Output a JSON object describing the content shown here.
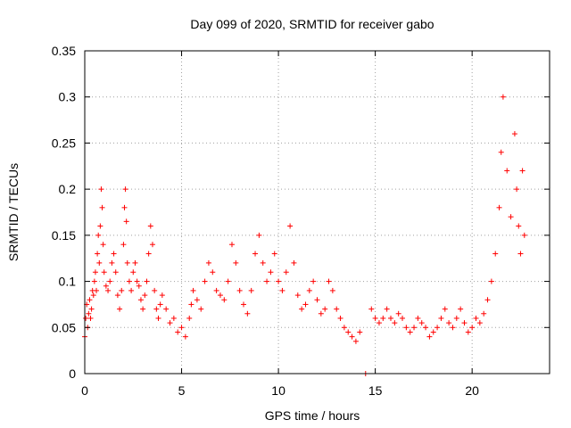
{
  "chart_data": {
    "type": "scatter",
    "title": "Day 099 of 2020, SRMTID for receiver gabo",
    "xlabel": "GPS time / hours",
    "ylabel": "SRMTID / TECUs",
    "xlim": [
      0,
      24
    ],
    "ylim": [
      0,
      0.35
    ],
    "xticks": [
      0,
      5,
      10,
      15,
      20
    ],
    "xtick_labels": [
      "0",
      "5",
      "10",
      "15",
      "20"
    ],
    "yticks": [
      0,
      0.05,
      0.1,
      0.15,
      0.2,
      0.25,
      0.3,
      0.35
    ],
    "ytick_labels": [
      "0",
      "0.05",
      "0.1",
      "0.15",
      "0.2",
      "0.25",
      "0.3",
      "0.35"
    ],
    "grid": true,
    "marker": "+",
    "color": "#ff0000",
    "series": [
      {
        "name": "SRMTID",
        "points": [
          [
            0.0,
            0.04
          ],
          [
            0.05,
            0.06
          ],
          [
            0.1,
            0.075
          ],
          [
            0.15,
            0.05
          ],
          [
            0.2,
            0.065
          ],
          [
            0.25,
            0.08
          ],
          [
            0.3,
            0.06
          ],
          [
            0.35,
            0.07
          ],
          [
            0.4,
            0.09
          ],
          [
            0.45,
            0.085
          ],
          [
            0.5,
            0.1
          ],
          [
            0.55,
            0.11
          ],
          [
            0.6,
            0.09
          ],
          [
            0.65,
            0.13
          ],
          [
            0.7,
            0.15
          ],
          [
            0.75,
            0.12
          ],
          [
            0.8,
            0.16
          ],
          [
            0.85,
            0.2
          ],
          [
            0.9,
            0.18
          ],
          [
            0.95,
            0.14
          ],
          [
            1.0,
            0.11
          ],
          [
            1.1,
            0.095
          ],
          [
            1.2,
            0.09
          ],
          [
            1.3,
            0.1
          ],
          [
            1.4,
            0.12
          ],
          [
            1.5,
            0.13
          ],
          [
            1.6,
            0.11
          ],
          [
            1.7,
            0.085
          ],
          [
            1.8,
            0.07
          ],
          [
            1.9,
            0.09
          ],
          [
            2.0,
            0.14
          ],
          [
            2.05,
            0.18
          ],
          [
            2.1,
            0.2
          ],
          [
            2.15,
            0.165
          ],
          [
            2.2,
            0.12
          ],
          [
            2.3,
            0.1
          ],
          [
            2.4,
            0.09
          ],
          [
            2.5,
            0.11
          ],
          [
            2.6,
            0.12
          ],
          [
            2.7,
            0.1
          ],
          [
            2.8,
            0.095
          ],
          [
            2.9,
            0.08
          ],
          [
            3.0,
            0.07
          ],
          [
            3.1,
            0.085
          ],
          [
            3.2,
            0.1
          ],
          [
            3.3,
            0.13
          ],
          [
            3.4,
            0.16
          ],
          [
            3.5,
            0.14
          ],
          [
            3.6,
            0.09
          ],
          [
            3.7,
            0.07
          ],
          [
            3.8,
            0.06
          ],
          [
            3.9,
            0.075
          ],
          [
            4.0,
            0.085
          ],
          [
            4.2,
            0.07
          ],
          [
            4.4,
            0.055
          ],
          [
            4.6,
            0.06
          ],
          [
            4.8,
            0.045
          ],
          [
            5.0,
            0.05
          ],
          [
            5.2,
            0.04
          ],
          [
            5.4,
            0.06
          ],
          [
            5.5,
            0.075
          ],
          [
            5.6,
            0.09
          ],
          [
            5.8,
            0.08
          ],
          [
            6.0,
            0.07
          ],
          [
            6.2,
            0.1
          ],
          [
            6.4,
            0.12
          ],
          [
            6.6,
            0.11
          ],
          [
            6.8,
            0.09
          ],
          [
            7.0,
            0.085
          ],
          [
            7.2,
            0.08
          ],
          [
            7.4,
            0.1
          ],
          [
            7.6,
            0.14
          ],
          [
            7.8,
            0.12
          ],
          [
            8.0,
            0.09
          ],
          [
            8.2,
            0.075
          ],
          [
            8.4,
            0.065
          ],
          [
            8.6,
            0.09
          ],
          [
            8.8,
            0.13
          ],
          [
            9.0,
            0.15
          ],
          [
            9.2,
            0.12
          ],
          [
            9.4,
            0.1
          ],
          [
            9.6,
            0.11
          ],
          [
            9.8,
            0.13
          ],
          [
            10.0,
            0.1
          ],
          [
            10.2,
            0.09
          ],
          [
            10.4,
            0.11
          ],
          [
            10.6,
            0.16
          ],
          [
            10.8,
            0.12
          ],
          [
            11.0,
            0.085
          ],
          [
            11.2,
            0.07
          ],
          [
            11.4,
            0.075
          ],
          [
            11.6,
            0.09
          ],
          [
            11.8,
            0.1
          ],
          [
            12.0,
            0.08
          ],
          [
            12.2,
            0.065
          ],
          [
            12.4,
            0.07
          ],
          [
            12.6,
            0.1
          ],
          [
            12.8,
            0.09
          ],
          [
            13.0,
            0.07
          ],
          [
            13.2,
            0.06
          ],
          [
            13.4,
            0.05
          ],
          [
            13.6,
            0.045
          ],
          [
            13.8,
            0.04
          ],
          [
            14.0,
            0.035
          ],
          [
            14.2,
            0.045
          ],
          [
            14.5,
            0.0
          ],
          [
            14.8,
            0.07
          ],
          [
            15.0,
            0.06
          ],
          [
            15.2,
            0.055
          ],
          [
            15.4,
            0.06
          ],
          [
            15.6,
            0.07
          ],
          [
            15.8,
            0.06
          ],
          [
            16.0,
            0.055
          ],
          [
            16.2,
            0.065
          ],
          [
            16.4,
            0.06
          ],
          [
            16.6,
            0.05
          ],
          [
            16.8,
            0.045
          ],
          [
            17.0,
            0.05
          ],
          [
            17.2,
            0.06
          ],
          [
            17.4,
            0.055
          ],
          [
            17.6,
            0.05
          ],
          [
            17.8,
            0.04
          ],
          [
            18.0,
            0.045
          ],
          [
            18.2,
            0.05
          ],
          [
            18.4,
            0.06
          ],
          [
            18.6,
            0.07
          ],
          [
            18.8,
            0.055
          ],
          [
            19.0,
            0.05
          ],
          [
            19.2,
            0.06
          ],
          [
            19.4,
            0.07
          ],
          [
            19.6,
            0.055
          ],
          [
            19.8,
            0.045
          ],
          [
            20.0,
            0.05
          ],
          [
            20.2,
            0.06
          ],
          [
            20.4,
            0.055
          ],
          [
            20.6,
            0.065
          ],
          [
            20.8,
            0.08
          ],
          [
            21.0,
            0.1
          ],
          [
            21.2,
            0.13
          ],
          [
            21.4,
            0.18
          ],
          [
            21.5,
            0.24
          ],
          [
            21.6,
            0.3
          ],
          [
            21.8,
            0.22
          ],
          [
            22.0,
            0.17
          ],
          [
            22.2,
            0.26
          ],
          [
            22.3,
            0.2
          ],
          [
            22.4,
            0.16
          ],
          [
            22.5,
            0.13
          ],
          [
            22.6,
            0.22
          ],
          [
            22.7,
            0.15
          ]
        ]
      }
    ]
  }
}
